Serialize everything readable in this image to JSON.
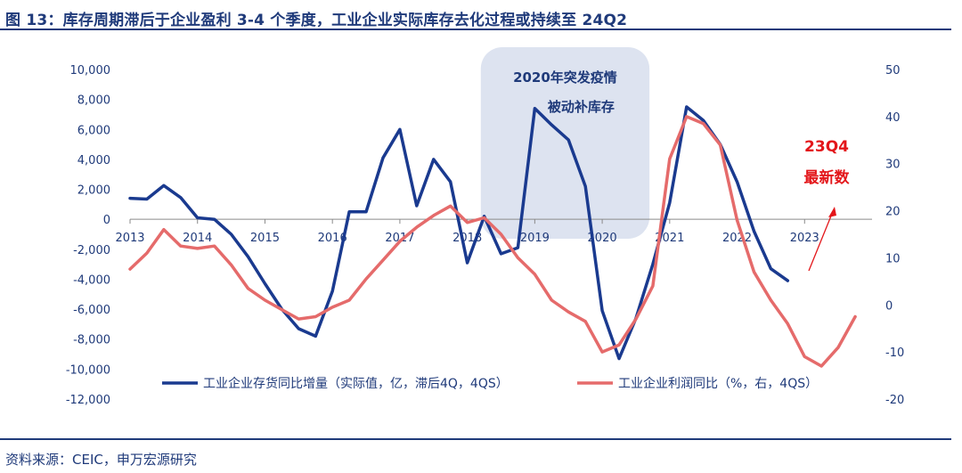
{
  "title": "图 13：库存周期滞后于企业盈利 3-4 个季度，工业企业实际库存去化过程或持续至 24Q2",
  "source": "资料来源：CEIC，申万宏源研究",
  "colors": {
    "blue": "#1a3a8f",
    "red": "#e56b6b",
    "shade": "#dde3f0",
    "text": "#1f3a7a",
    "annotation_red": "#e3161a"
  },
  "chart_data": {
    "type": "line",
    "title": "",
    "xlabel": "",
    "ylabel": "",
    "x_ticks": [
      "2013",
      "2014",
      "2015",
      "2016",
      "2017",
      "2018",
      "2019",
      "2020",
      "2021",
      "2022",
      "2023"
    ],
    "x_range": [
      2013,
      2024
    ],
    "y_left": {
      "ticks": [
        "10,000",
        "8,000",
        "6,000",
        "4,000",
        "2,000",
        "0",
        "-2,000",
        "-4,000",
        "-6,000",
        "-8,000",
        "-10,000",
        "-12,000"
      ],
      "range": [
        -12000,
        10000
      ]
    },
    "y_right": {
      "ticks": [
        "50",
        "40",
        "30",
        "20",
        "10",
        "0",
        "-10",
        "-20"
      ],
      "range": [
        -20,
        50
      ]
    },
    "legend": {
      "position": "bottom"
    },
    "series": [
      {
        "name": "工业企业存货同比增量（实际值，亿，滞后4Q，4QS）",
        "axis": "left",
        "points": [
          [
            2013.0,
            1400
          ],
          [
            2013.25,
            1350
          ],
          [
            2013.5,
            2250
          ],
          [
            2013.75,
            1450
          ],
          [
            2014.0,
            100
          ],
          [
            2014.25,
            0
          ],
          [
            2014.5,
            -1000
          ],
          [
            2014.75,
            -2500
          ],
          [
            2015.0,
            -4300
          ],
          [
            2015.25,
            -6000
          ],
          [
            2015.5,
            -7300
          ],
          [
            2015.75,
            -7800
          ],
          [
            2016.0,
            -4800
          ],
          [
            2016.25,
            500
          ],
          [
            2016.5,
            500
          ],
          [
            2016.75,
            4100
          ],
          [
            2017.0,
            6000
          ],
          [
            2017.25,
            900
          ],
          [
            2017.5,
            4000
          ],
          [
            2017.75,
            2500
          ],
          [
            2018.0,
            -2900
          ],
          [
            2018.25,
            200
          ],
          [
            2018.5,
            -2300
          ],
          [
            2018.75,
            -1900
          ],
          [
            2019.0,
            7400
          ],
          [
            2019.25,
            6300
          ],
          [
            2019.5,
            5300
          ],
          [
            2019.75,
            2200
          ],
          [
            2020.0,
            -6100
          ],
          [
            2020.25,
            -9300
          ],
          [
            2020.5,
            -6600
          ],
          [
            2020.75,
            -3000
          ],
          [
            2021.0,
            1100
          ],
          [
            2021.25,
            7500
          ],
          [
            2021.5,
            6600
          ],
          [
            2021.75,
            5000
          ],
          [
            2022.0,
            2500
          ],
          [
            2022.25,
            -800
          ],
          [
            2022.5,
            -3300
          ],
          [
            2022.75,
            -4100
          ]
        ]
      },
      {
        "name": "工业企业利润同比（%，右，4QS）",
        "axis": "right",
        "points": [
          [
            2013.0,
            7.6
          ],
          [
            2013.25,
            11
          ],
          [
            2013.5,
            16
          ],
          [
            2013.75,
            12.5
          ],
          [
            2014.0,
            12
          ],
          [
            2014.25,
            12.5
          ],
          [
            2014.5,
            8.5
          ],
          [
            2014.75,
            3.5
          ],
          [
            2015.0,
            1
          ],
          [
            2015.25,
            -1
          ],
          [
            2015.5,
            -3
          ],
          [
            2015.75,
            -2.5
          ],
          [
            2016.0,
            -0.5
          ],
          [
            2016.25,
            1
          ],
          [
            2016.5,
            5.5
          ],
          [
            2016.75,
            9.5
          ],
          [
            2017.0,
            13.5
          ],
          [
            2017.25,
            16.5
          ],
          [
            2017.5,
            19
          ],
          [
            2017.75,
            21
          ],
          [
            2018.0,
            17.5
          ],
          [
            2018.25,
            18.5
          ],
          [
            2018.5,
            15
          ],
          [
            2018.75,
            10
          ],
          [
            2019.0,
            6.5
          ],
          [
            2019.25,
            1
          ],
          [
            2019.5,
            -1.5
          ],
          [
            2019.75,
            -3.5
          ],
          [
            2020.0,
            -10
          ],
          [
            2020.25,
            -8.5
          ],
          [
            2020.5,
            -3
          ],
          [
            2020.75,
            4
          ],
          [
            2021.0,
            31
          ],
          [
            2021.25,
            40
          ],
          [
            2021.5,
            38.5
          ],
          [
            2021.75,
            34
          ],
          [
            2022.0,
            18
          ],
          [
            2022.25,
            7
          ],
          [
            2022.5,
            1
          ],
          [
            2022.75,
            -4
          ],
          [
            2023.0,
            -11
          ],
          [
            2023.25,
            -13
          ],
          [
            2023.5,
            -9
          ],
          [
            2023.75,
            -2.5
          ]
        ]
      }
    ],
    "shaded_region": {
      "x_start": 2018.2,
      "x_end": 2020.7
    },
    "annotations": [
      {
        "lines": [
          "2020年突发疫情",
          "被动补库存"
        ],
        "kind": "shaded-box"
      },
      {
        "lines": [
          "23Q4",
          "最新数"
        ],
        "kind": "red-text"
      }
    ]
  }
}
